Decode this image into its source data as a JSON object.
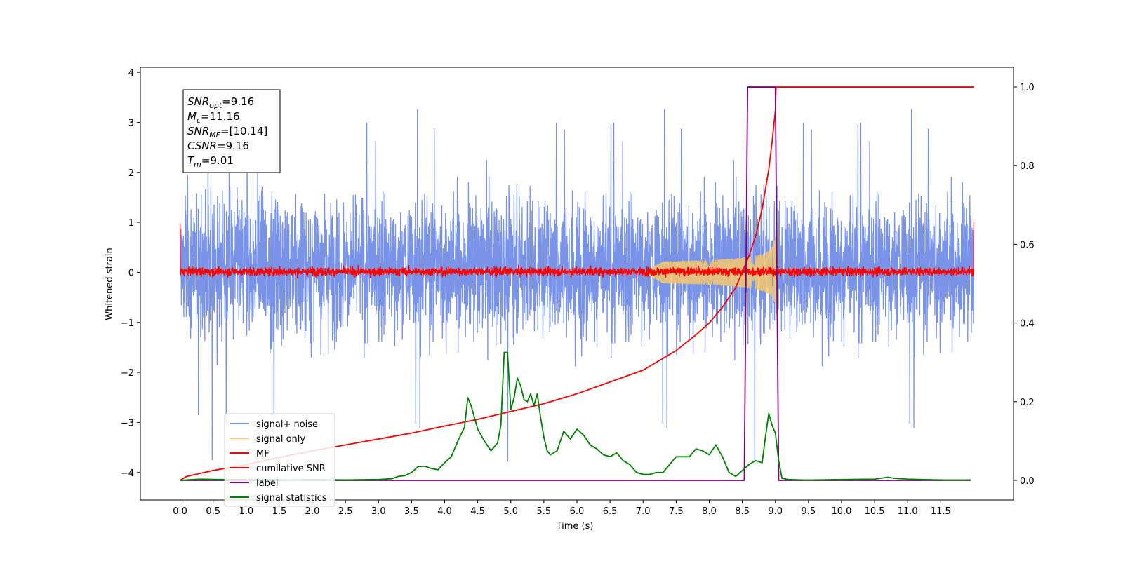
{
  "chart_data": {
    "type": "line",
    "title": "",
    "xlabel": "Time (s)",
    "ylabel": "Whitened strain",
    "xlim": [
      -0.6,
      12.6
    ],
    "ylim": [
      -4.55,
      4.1
    ],
    "ylim_right": [
      -0.05,
      1.05
    ],
    "x_ticks": [
      0.0,
      0.5,
      1.0,
      1.5,
      2.0,
      2.5,
      3.0,
      3.5,
      4.0,
      4.5,
      5.0,
      5.5,
      6.0,
      6.5,
      7.0,
      7.5,
      8.0,
      8.5,
      9.0,
      9.5,
      10.0,
      10.5,
      11.0,
      11.5
    ],
    "x_tick_labels": [
      "0.0",
      "0.5",
      "1.0",
      "1.5",
      "2.0",
      "2.5",
      "3.0",
      "3.5",
      "4.0",
      "4.5",
      "5.0",
      "5.5",
      "6.0",
      "6.5",
      "7.0",
      "7.5",
      "8.0",
      "8.5",
      "9.0",
      "9.5",
      "10.0",
      "10.5",
      "11.0",
      "11.5"
    ],
    "y_ticks": [
      4,
      3,
      2,
      1,
      0,
      -1,
      -2,
      -3,
      -4
    ],
    "y_tick_labels": [
      "4",
      "3",
      "2",
      "1",
      "0",
      "−1",
      "−2",
      "−3",
      "−4"
    ],
    "y_right_ticks": [
      1.0,
      0.8,
      0.6,
      0.4,
      0.2,
      0.0
    ],
    "y_right_tick_labels": [
      "1.0",
      "0.8",
      "0.6",
      "0.4",
      "0.2",
      "0.0"
    ],
    "grid": false,
    "legend_position": "lower-left",
    "annotation": {
      "lines": [
        {
          "base": "SNR",
          "sub": "opt",
          "value": "=9.16"
        },
        {
          "base": "M",
          "sub": "c",
          "value": "=11.16"
        },
        {
          "base": "SNR",
          "sub": "MF",
          "value": "=[10.14]"
        },
        {
          "base": "CSNR",
          "sub": "",
          "value": "=9.16"
        },
        {
          "base": "T",
          "sub": "m",
          "value": "=9.01"
        }
      ]
    },
    "series": [
      {
        "name": "signal+ noise",
        "color": "#7893e8",
        "axis": "left",
        "style": "noise",
        "x_range": [
          0,
          12
        ],
        "band_lower": -2.0,
        "band_upper": 2.2,
        "extreme_max": 3.6,
        "extreme_min": -4.1
      },
      {
        "name": "signal only",
        "color": "#f5c86e",
        "axis": "left",
        "style": "chirp",
        "x_range": [
          7.0,
          9.01
        ],
        "peak_time": 9.01,
        "peak_amplitude": 1.0
      },
      {
        "name": "MF",
        "color": "#ff0000",
        "axis": "left",
        "style": "noise",
        "x_range": [
          0,
          12
        ],
        "band_lower": -0.12,
        "band_upper": 0.15,
        "edge_start": 0.97,
        "edge_end": 1.0
      },
      {
        "name": "cumilative SNR",
        "color": "#ff0000",
        "axis": "right",
        "style": "line",
        "x": [
          0.0,
          0.1,
          0.5,
          1.0,
          1.5,
          2.0,
          2.5,
          3.0,
          3.5,
          4.0,
          4.5,
          5.0,
          5.5,
          6.0,
          6.5,
          7.0,
          7.5,
          7.8,
          8.0,
          8.2,
          8.4,
          8.5,
          8.6,
          8.7,
          8.8,
          8.9,
          8.95,
          9.0,
          9.01,
          12.0
        ],
        "y": [
          0.0,
          0.01,
          0.025,
          0.04,
          0.058,
          0.075,
          0.09,
          0.105,
          0.12,
          0.138,
          0.155,
          0.175,
          0.195,
          0.22,
          0.25,
          0.28,
          0.33,
          0.37,
          0.4,
          0.44,
          0.49,
          0.53,
          0.57,
          0.62,
          0.69,
          0.79,
          0.86,
          0.94,
          1.0,
          1.0
        ]
      },
      {
        "name": "label",
        "color": "#800080",
        "axis": "right",
        "style": "line",
        "x": [
          0.0,
          8.53,
          8.58,
          9.0,
          9.05,
          11.95
        ],
        "y": [
          0.0,
          0.0,
          1.0,
          1.0,
          0.0,
          0.0
        ]
      },
      {
        "name": "signal statistics",
        "color": "#008000",
        "axis": "right",
        "style": "line",
        "x": [
          0.0,
          0.3,
          0.6,
          1.0,
          1.5,
          2.0,
          2.5,
          3.0,
          3.2,
          3.3,
          3.4,
          3.5,
          3.6,
          3.7,
          3.8,
          3.9,
          4.0,
          4.1,
          4.2,
          4.3,
          4.35,
          4.4,
          4.45,
          4.5,
          4.6,
          4.7,
          4.8,
          4.85,
          4.9,
          4.95,
          5.0,
          5.05,
          5.1,
          5.15,
          5.2,
          5.25,
          5.3,
          5.35,
          5.4,
          5.45,
          5.5,
          5.55,
          5.6,
          5.7,
          5.8,
          5.9,
          6.0,
          6.1,
          6.2,
          6.3,
          6.4,
          6.5,
          6.6,
          6.7,
          6.8,
          6.9,
          7.0,
          7.1,
          7.2,
          7.3,
          7.4,
          7.5,
          7.6,
          7.7,
          7.8,
          7.9,
          8.0,
          8.1,
          8.2,
          8.3,
          8.4,
          8.5,
          8.6,
          8.7,
          8.8,
          8.85,
          8.9,
          8.95,
          9.0,
          9.05,
          9.1,
          9.2,
          9.4,
          9.6,
          10.0,
          10.5,
          10.7,
          10.8,
          11.0,
          11.5,
          11.95
        ],
        "y": [
          0.0,
          0.003,
          0.002,
          0.002,
          0.001,
          0.002,
          0.001,
          0.002,
          0.004,
          0.01,
          0.012,
          0.02,
          0.035,
          0.036,
          0.03,
          0.027,
          0.045,
          0.06,
          0.1,
          0.135,
          0.21,
          0.19,
          0.16,
          0.13,
          0.1,
          0.075,
          0.095,
          0.14,
          0.325,
          0.325,
          0.18,
          0.21,
          0.26,
          0.24,
          0.205,
          0.2,
          0.22,
          0.19,
          0.22,
          0.16,
          0.11,
          0.075,
          0.065,
          0.075,
          0.125,
          0.105,
          0.13,
          0.115,
          0.09,
          0.08,
          0.065,
          0.06,
          0.07,
          0.05,
          0.04,
          0.02,
          0.015,
          0.015,
          0.02,
          0.02,
          0.04,
          0.06,
          0.06,
          0.06,
          0.08,
          0.075,
          0.065,
          0.09,
          0.06,
          0.02,
          0.01,
          0.025,
          0.04,
          0.05,
          0.045,
          0.11,
          0.17,
          0.14,
          0.12,
          0.05,
          0.005,
          0.002,
          0.001,
          0.001,
          0.002,
          0.003,
          0.008,
          0.005,
          0.003,
          0.001,
          0.001
        ]
      }
    ]
  }
}
